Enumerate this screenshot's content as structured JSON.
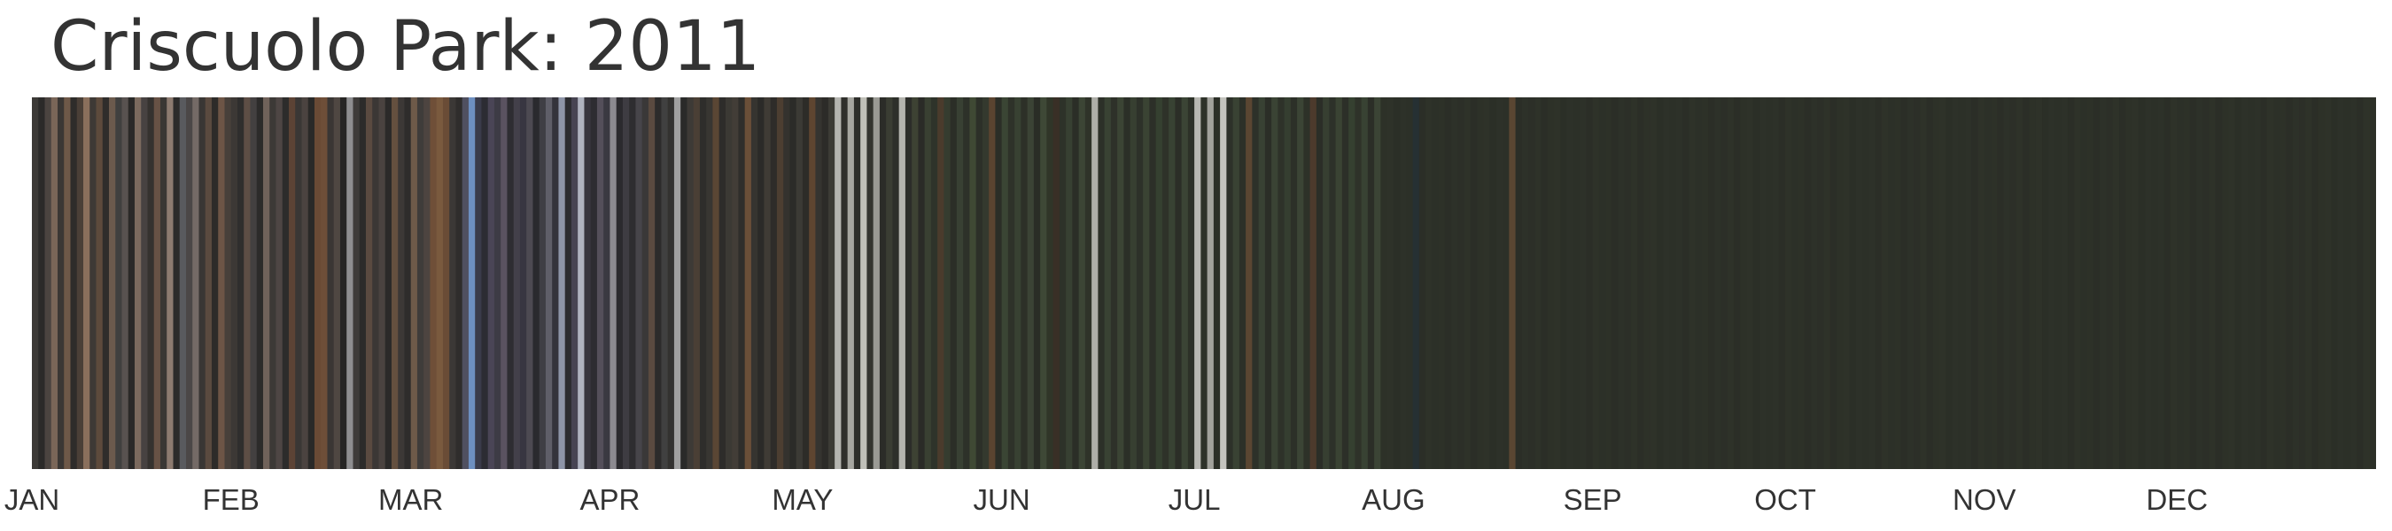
{
  "chart_data": {
    "type": "heatmap",
    "title": "Criscuolo Park: 2011",
    "year": 2011,
    "x_axis_labels": [
      "JAN",
      "FEB",
      "MAR",
      "APR",
      "MAY",
      "JUN",
      "JUL",
      "AUG",
      "SEP",
      "OCT",
      "NOV",
      "DEC"
    ],
    "days_in_month": [
      31,
      28,
      31,
      30,
      31,
      30,
      31,
      31,
      30,
      31,
      30,
      31
    ],
    "daily_colors": [
      "#3c3a37",
      "#2b2a29",
      "#4b4440",
      "#7a6658",
      "#3b3734",
      "#6e5848",
      "#2e2c2a",
      "#4a3f37",
      "#8a6f5c",
      "#3e3935",
      "#5d4a3c",
      "#2f2d2b",
      "#6b5a4d",
      "#40403f",
      "#585250",
      "#2a2928",
      "#7b6a5e",
      "#474241",
      "#35322f",
      "#675245",
      "#3a3734",
      "#8d7b70",
      "#2c2b2a",
      "#595a5e",
      "#4b4747",
      "#746a66",
      "#393634",
      "#5a4a3f",
      "#2d2b29",
      "#6d5546",
      "#48403a",
      "#3c3835",
      "#2f2e2d",
      "#5d4e45",
      "#434040",
      "#2c2b2a",
      "#70625a",
      "#3c3936",
      "#4e4644",
      "#2d2c2b",
      "#5c4335",
      "#3a3735",
      "#4b4340",
      "#2a2928",
      "#6a4a35",
      "#6e4e38",
      "#3a3634",
      "#4f4742",
      "#262524",
      "#8e8e90",
      "#3e3b39",
      "#2c2b2a",
      "#5a4a40",
      "#3b3735",
      "#4a4340",
      "#2b2a29",
      "#64503f",
      "#3c3836",
      "#2e2c2b",
      "#6e5a49",
      "#3f3c3a",
      "#4d4440",
      "#6f4f38",
      "#7a5a3e",
      "#6a4c36",
      "#3b3836",
      "#2f2d2c",
      "#505060",
      "#6d8fc0",
      "#3a3b4a",
      "#2c2c33",
      "#4a4556",
      "#3d3b45",
      "#5a5260",
      "#2e2d32",
      "#43404a",
      "#383641",
      "#4d4a52",
      "#2a2a2e",
      "#3f3e44",
      "#5f5e68",
      "#34333b",
      "#8e95a8",
      "#2c2c30",
      "#474452",
      "#b0b4c0",
      "#38363e",
      "#2d2c31",
      "#544f5a",
      "#3a3941",
      "#8c8a90",
      "#2b2a2e",
      "#3e3c42",
      "#2e2d30",
      "#47454a",
      "#3a3838",
      "#5a4a40",
      "#2c2b2b",
      "#404040",
      "#333230",
      "#a0a0a0",
      "#2a2a29",
      "#3d3a36",
      "#4a3f35",
      "#2e2d2b",
      "#383632",
      "#5a4634",
      "#2d2c2a",
      "#3b3934",
      "#423d37",
      "#2f2e2b",
      "#6a4f38",
      "#363430",
      "#2b2a28",
      "#3f3b35",
      "#2e2c29",
      "#4c3e31",
      "#34322e",
      "#2b2b28",
      "#3b3a35",
      "#2d2c28",
      "#5e4530",
      "#353430",
      "#2c2b28",
      "#3c3b35",
      "#b5b5b0",
      "#2f2f2b",
      "#a6a6a0",
      "#2d2e2a",
      "#c0c0b8",
      "#34352f",
      "#9a9a94",
      "#2b2c28",
      "#3a3d33",
      "#2d2f2a",
      "#b4b4ae",
      "#2c2d29",
      "#3d4233",
      "#2a2b27",
      "#394032",
      "#2e332a",
      "#4a3b2c",
      "#353c2f",
      "#2b2e27",
      "#384033",
      "#2d3129",
      "#3f4934",
      "#2c3028",
      "#34392e",
      "#5a4430",
      "#2b2e27",
      "#3a4534",
      "#2e3229",
      "#384132",
      "#2d3028",
      "#3b4335",
      "#2a2d26",
      "#3e4836",
      "#303528",
      "#392f26",
      "#2d3229",
      "#374032",
      "#2b2e27",
      "#3c4535",
      "#2f3329",
      "#aeaea8",
      "#2c3028",
      "#394233",
      "#2e3129",
      "#3b4434",
      "#2b2f27",
      "#373f31",
      "#2d3129",
      "#3a4333",
      "#2c2f28",
      "#354030",
      "#2e3229",
      "#384233",
      "#2b2e27",
      "#3b4435",
      "#2d3128",
      "#b8b8b2",
      "#2e3229",
      "#a2a29c",
      "#2b2f27",
      "#c4c4be",
      "#2d3129",
      "#394233",
      "#2c3028",
      "#5a4632",
      "#2d3129",
      "#384133",
      "#2b2e27",
      "#3a4334",
      "#2e3229",
      "#353e30",
      "#2c3028",
      "#3b4435",
      "#2d3128",
      "#4c3a2c",
      "#2b2e27",
      "#373f31",
      "#2d3129",
      "#3a4333",
      "#2c2f28",
      "#354030",
      "#2e3229",
      "#384233",
      "#2b2e27",
      "#3b4435",
      "#2d3128",
      "#2e3229",
      "#2b2f27",
      "#2d3129",
      "#2c3028",
      "#263033",
      "#2b2e27",
      "#2e3229",
      "#2c3028",
      "#2d3128",
      "#2b2e27",
      "#2d3129",
      "#2c2f28",
      "#2e3229",
      "#2b2e27",
      "#2d3128",
      "#2e3229",
      "#2b2f27",
      "#2d3129",
      "#2c3028",
      "#5a4632",
      "#2b2e27",
      "#2d3129",
      "#2c2f28",
      "#2e3229",
      "#2b2e27",
      "#2d3128",
      "#2e3229",
      "#2b2f27",
      "#2d3129",
      "#2c3028",
      "#2d3129",
      "#2b2e27",
      "#2e3229",
      "#2c3028",
      "#2d3128",
      "#2b2e27",
      "#2d3129",
      "#2c2f28",
      "#2e3229",
      "#2b2e27",
      "#2d3128",
      "#2e3229",
      "#2b2f27",
      "#2d3129",
      "#2c3028",
      "#2d3129",
      "#2b2e27",
      "#2e3229",
      "#2c3028",
      "#2d3128",
      "#2b2e27",
      "#2d3129",
      "#2c2f28",
      "#2e3229",
      "#2b2e27",
      "#2d3128",
      "#2e3229",
      "#2b2f27",
      "#2d3129",
      "#2c3028",
      "#2d3129",
      "#2b2e27",
      "#2e3229",
      "#2c3028",
      "#2d3128",
      "#2b2e27",
      "#2d3129",
      "#2c2f28",
      "#2e3229",
      "#2b2e27",
      "#2d3128",
      "#2e3229",
      "#2b2f27",
      "#2d3129",
      "#2c3028",
      "#2d3129",
      "#2b2e27",
      "#2e3229",
      "#2c3028",
      "#2d3128",
      "#2b2e27",
      "#2d3129",
      "#2c2f28",
      "#2e3229",
      "#2b2e27",
      "#2d3128",
      "#2e3229",
      "#2b2f27",
      "#2d3129",
      "#2c3028",
      "#2d3129",
      "#2b2e27",
      "#2e3229",
      "#2c3028",
      "#2d3128",
      "#2b2e27",
      "#2d3129",
      "#2c2f28",
      "#2e3229",
      "#2b2e27",
      "#2d3128",
      "#2e3229",
      "#2b2f27",
      "#2d3129",
      "#2c3028",
      "#2d3129",
      "#2b2e27",
      "#2e3229",
      "#2c3028",
      "#2d3128",
      "#2b2e27",
      "#2d3129",
      "#2c2f28",
      "#2e3229",
      "#2b2e27",
      "#2d3128",
      "#2e3229",
      "#2b2f27",
      "#2d3129",
      "#2c3028",
      "#2d3129",
      "#2b2e27",
      "#2e3229",
      "#2c3028",
      "#2d3128",
      "#2b2e27",
      "#2d3129",
      "#2c2f28",
      "#2e3229",
      "#2b2e27",
      "#2d3128",
      "#2e3229",
      "#2b2f27",
      "#2d3129",
      "#2c3028",
      "#2d3129",
      "#2b2e27",
      "#2e3229",
      "#2c3028",
      "#2d3128",
      "#2b2e27",
      "#2d3129",
      "#2c2f28",
      "#2e3229",
      "#2b2e27",
      "#2d3128",
      "#2e3229",
      "#2b2f27",
      "#2d3129",
      "#2c3028",
      "#2d3129",
      "#2b2e27",
      "#2e3229",
      "#2c3028"
    ]
  }
}
